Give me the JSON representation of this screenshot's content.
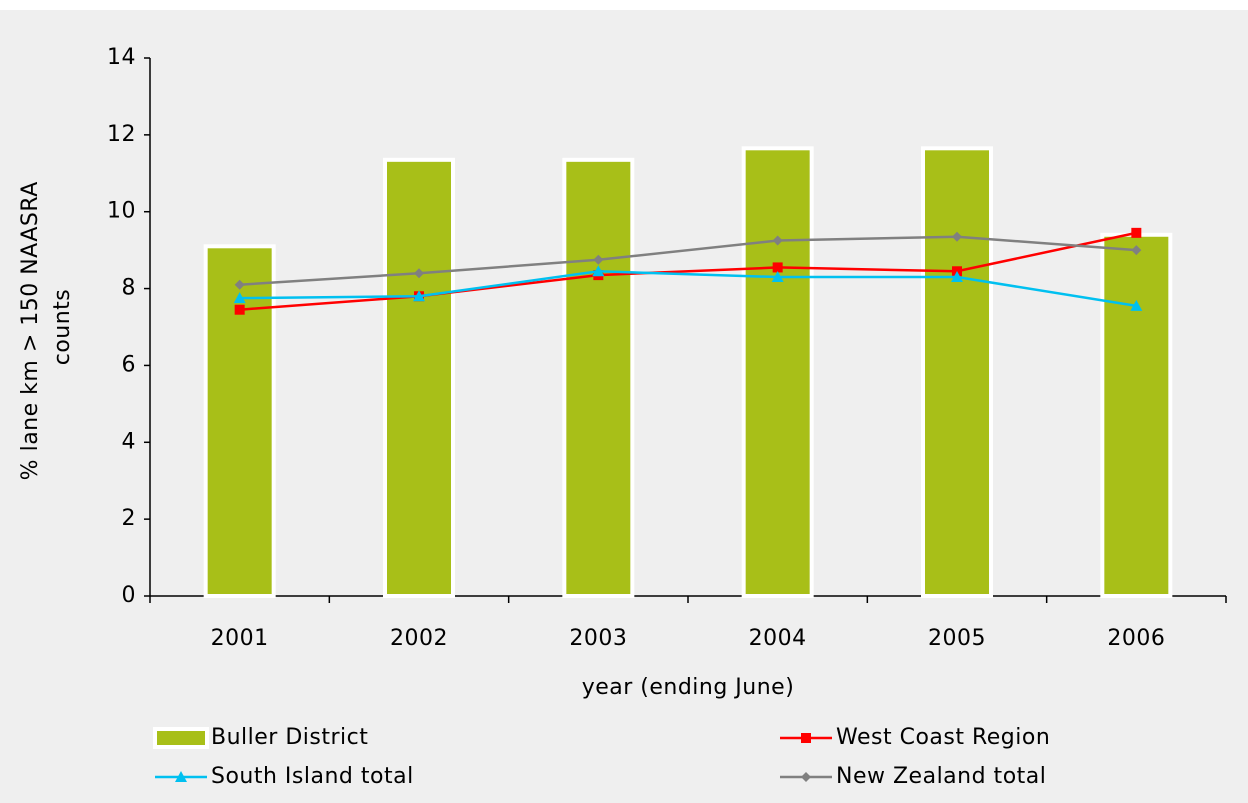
{
  "chart_data": {
    "type": "bar-line",
    "ylabel": [
      "% lane km > 150 NAASRA",
      "counts"
    ],
    "xlabel": "year (ending June)",
    "categories": [
      "2001",
      "2002",
      "2003",
      "2004",
      "2005",
      "2006"
    ],
    "ylim": [
      0,
      14
    ],
    "yticks": [
      0,
      2,
      4,
      6,
      8,
      10,
      12,
      14
    ],
    "series": [
      {
        "name": "Buller District",
        "type": "bar",
        "color": "#a8bf18",
        "values": [
          9.1,
          11.35,
          11.35,
          11.65,
          11.65,
          9.4
        ]
      },
      {
        "name": "West Coast Region",
        "type": "line",
        "marker": "square",
        "color": "#ff0000",
        "values": [
          7.45,
          7.8,
          8.35,
          8.55,
          8.45,
          9.45
        ]
      },
      {
        "name": "South Island total",
        "type": "line",
        "marker": "triangle",
        "color": "#00c0f0",
        "values": [
          7.75,
          7.8,
          8.45,
          8.3,
          8.3,
          7.55
        ]
      },
      {
        "name": "New Zealand total",
        "type": "line",
        "marker": "diamond",
        "color": "#808080",
        "values": [
          8.1,
          8.4,
          8.75,
          9.25,
          9.35,
          9.0
        ]
      }
    ]
  }
}
